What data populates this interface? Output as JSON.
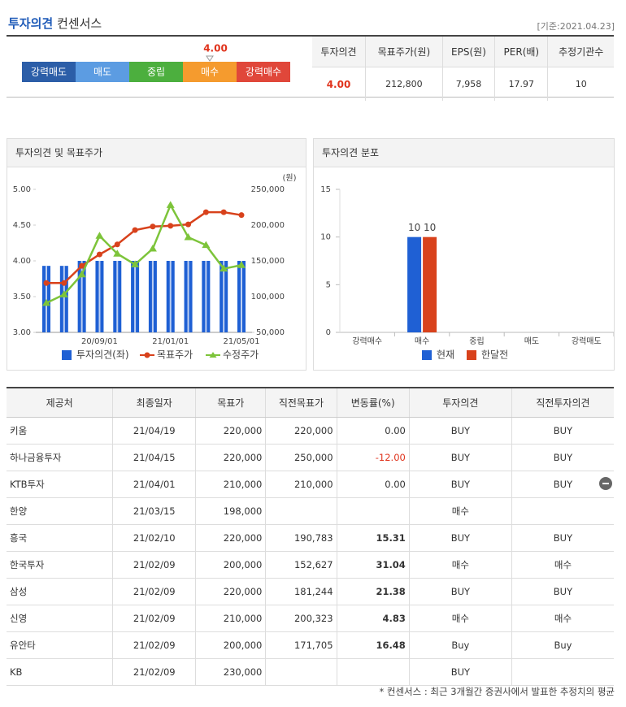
{
  "header": {
    "title_highlight": "투자의견",
    "title_rest": "컨센서스",
    "date": "[기준:2021.04.23]"
  },
  "gauge": {
    "score": {
      "value": 4,
      "label": "4.00"
    },
    "segments": [
      {
        "label": "강력매도",
        "color": "#2c5ea8"
      },
      {
        "label": "매도",
        "color": "#5c9ce2"
      },
      {
        "label": "중립",
        "color": "#4caf3e"
      },
      {
        "label": "매수",
        "color": "#f59b2e"
      },
      {
        "label": "강력매수",
        "color": "#e0473a"
      }
    ]
  },
  "summary": {
    "headers": [
      "투자의견",
      "목표주가(원)",
      "EPS(원)",
      "PER(배)",
      "추정기관수"
    ],
    "values": [
      "4.00",
      "212,800",
      "7,958",
      "17.97",
      "10"
    ]
  },
  "chart_data": [
    {
      "type": "bar_line",
      "title": "투자의견 및 목표주가",
      "y2_unit": "(원)",
      "categories": [
        null,
        null,
        null,
        "20/09/01",
        null,
        null,
        null,
        "21/01/01",
        null,
        null,
        null,
        "21/05/01"
      ],
      "ylim": [
        3,
        5
      ],
      "yticks": [
        {
          "value": 3,
          "label": "3.00"
        },
        {
          "value": 3.5,
          "label": "3.50"
        },
        {
          "value": 4,
          "label": "4.00"
        },
        {
          "value": 4.5,
          "label": "4.50"
        },
        {
          "value": 5,
          "label": "5.00"
        }
      ],
      "y2lim": [
        50000,
        250000
      ],
      "y2ticks": [
        {
          "value": 50000,
          "label": "50,000"
        },
        {
          "value": 100000,
          "label": "100,000"
        },
        {
          "value": 150000,
          "label": "150,000"
        },
        {
          "value": 200000,
          "label": "200,000"
        },
        {
          "value": 250000,
          "label": "250,000"
        }
      ],
      "series": [
        {
          "name": "투자의견(좌)",
          "kind": "bar",
          "color": "#1f60d4",
          "values": [
            3.93,
            3.93,
            4,
            4,
            4,
            4,
            4,
            4,
            4,
            4,
            4,
            4
          ]
        },
        {
          "name": "목표주가",
          "kind": "line",
          "marker": "circle",
          "axis": "y2",
          "color": "#d8421c",
          "values": [
            119000,
            119000,
            143000,
            159000,
            173000,
            193000,
            198000,
            199000,
            201000,
            218000,
            218000,
            214000
          ]
        },
        {
          "name": "수정주가",
          "kind": "line",
          "marker": "triangle",
          "axis": "y2",
          "color": "#7dc43a",
          "values": [
            91000,
            103000,
            131000,
            185000,
            160000,
            145000,
            167000,
            228000,
            183000,
            172000,
            139000,
            144000
          ]
        }
      ]
    },
    {
      "type": "grouped_bar",
      "title": "투자의견 분포",
      "categories": [
        "강력매수",
        "매수",
        "중립",
        "매도",
        "강력매도"
      ],
      "ylim": [
        0,
        15
      ],
      "yticks": [
        0,
        5,
        10,
        15
      ],
      "series": [
        {
          "name": "현재",
          "color": "#1f60d4",
          "values": [
            0,
            10,
            0,
            0,
            0
          ]
        },
        {
          "name": "한달전",
          "color": "#d8421c",
          "values": [
            0,
            10,
            0,
            0,
            0
          ]
        }
      ]
    }
  ],
  "table": {
    "headers": [
      "제공처",
      "최종일자",
      "목표가",
      "직전목표가",
      "변동률(%)",
      "투자의견",
      "직전투자의견"
    ],
    "rows": [
      [
        "키움",
        "21/04/19",
        "220,000",
        "220,000",
        "0.00",
        "BUY",
        "BUY"
      ],
      [
        "하나금융투자",
        "21/04/15",
        "220,000",
        "250,000",
        "-12.00",
        "BUY",
        "BUY"
      ],
      [
        "KTB투자",
        "21/04/01",
        "210,000",
        "210,000",
        "0.00",
        "BUY",
        "BUY"
      ],
      [
        "한양",
        "21/03/15",
        "198,000",
        null,
        null,
        "매수",
        null
      ],
      [
        "흥국",
        "21/02/10",
        "220,000",
        "190,783",
        "15.31",
        "BUY",
        "BUY"
      ],
      [
        "한국투자",
        "21/02/09",
        "200,000",
        "152,627",
        "31.04",
        "매수",
        "매수"
      ],
      [
        "삼성",
        "21/02/09",
        "220,000",
        "181,244",
        "21.38",
        "BUY",
        "BUY"
      ],
      [
        "신영",
        "21/02/09",
        "210,000",
        "200,323",
        "4.83",
        "매수",
        "매수"
      ],
      [
        "유안타",
        "21/02/09",
        "200,000",
        "171,705",
        "16.48",
        "Buy",
        "Buy"
      ],
      [
        "KB",
        "21/02/09",
        "230,000",
        null,
        null,
        "BUY",
        null
      ]
    ]
  },
  "footnote": "* 컨센서스 : 최근 3개월간 증권사에서 발표한 추정치의 평균"
}
